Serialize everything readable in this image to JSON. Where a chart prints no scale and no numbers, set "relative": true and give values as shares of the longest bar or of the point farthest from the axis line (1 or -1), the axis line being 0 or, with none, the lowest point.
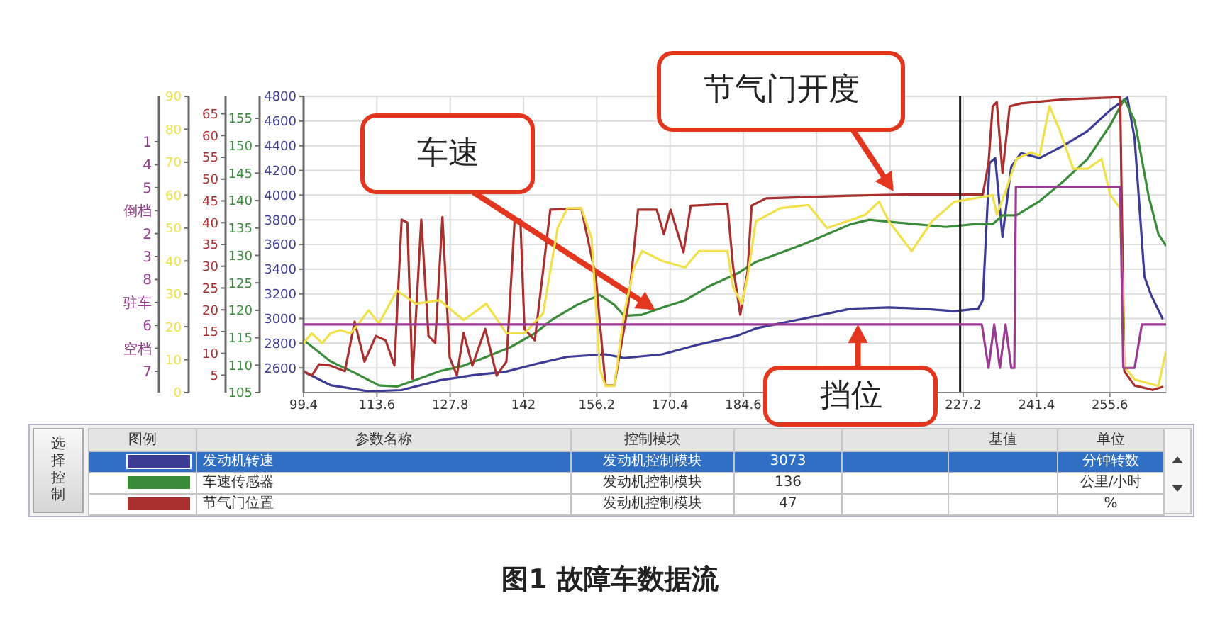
{
  "chart_data": [
    {
      "type": "line",
      "title": "图1 故障车数据流",
      "xlim": [
        99.4,
        266.5
      ],
      "xticks": [
        99.4,
        113.6,
        127.8,
        142,
        156.2,
        170.4,
        184.6,
        {
          "value": 198.8,
          "label": null
        },
        {
          "value": 213,
          "label": null
        },
        227.2,
        241.4,
        255.6
      ],
      "ylim": [
        2400,
        4800
      ],
      "yticks": [
        2600,
        2800,
        3000,
        3200,
        3400,
        3600,
        3800,
        4000,
        4200,
        4400,
        4600,
        4800
      ],
      "y2lim": [
        105,
        159
      ],
      "y2ticks": [
        105,
        110,
        115,
        120,
        125,
        130,
        135,
        140,
        145,
        150,
        155
      ],
      "y3lim": [
        1,
        69
      ],
      "y3ticks": [
        5,
        10,
        15,
        20,
        25,
        30,
        35,
        40,
        45,
        50,
        55,
        60,
        65
      ],
      "grid": true,
      "legend": "bottom",
      "ref_lines": [
        {
          "axis": "x",
          "value": 226.6,
          "color": "#1a1a1a"
        }
      ],
      "annotations": [
        {
          "text": "车速",
          "x": 167.5,
          "y": 3070
        },
        {
          "text": "节气门开度",
          "x": 213.7,
          "y": 4030
        },
        "选择控制",
        "图例",
        "参数名称",
        "控制模块",
        "基值",
        "单位",
        "发动机控制模块",
        "3073",
        "分钟转数",
        "发动机控制模块",
        "136",
        "公里/小时",
        "发动机控制模块",
        "47",
        "%"
      ],
      "series": [
        {
          "name": "发动机转速",
          "color": "#3c3c94",
          "x": [
            99.4,
            104.6,
            112.0,
            118.4,
            125.8,
            132.1,
            138.7,
            144.2,
            150.5,
            157.9,
            161.5,
            168.9,
            176.0,
            183.4,
            187.0,
            196.4,
            205.4,
            212.8,
            219.2,
            225.5,
            230.1,
            231.0,
            232.3,
            233.4,
            234.8,
            236.5,
            238.4,
            242.0,
            246.6,
            251.3,
            255.7,
            259.0,
            260.4,
            262.3,
            263.6,
            265.8
          ],
          "values": [
            2570,
            2460,
            2410,
            2420,
            2500,
            2540,
            2570,
            2630,
            2690,
            2710,
            2680,
            2710,
            2790,
            2860,
            2920,
            3000,
            3080,
            3090,
            3080,
            3060,
            3080,
            3150,
            4260,
            4300,
            3660,
            4230,
            4340,
            4300,
            4400,
            4520,
            4690,
            4790,
            4460,
            3340,
            3190,
            3000
          ]
        },
        {
          "name": "车速传感器",
          "color": "#3a8c3a",
          "axis": "y2",
          "x": [
            99.4,
            104.6,
            109.3,
            114.0,
            117.5,
            121.1,
            125.8,
            130.4,
            134.8,
            139.5,
            144.2,
            147.7,
            152.4,
            156.8,
            159.6,
            161.5,
            165.0,
            168.9,
            173.3,
            178.0,
            183.4,
            187.0,
            196.4,
            205.4,
            209.0,
            214.5,
            223.8,
            229.3,
            232.9,
            234.8,
            237.5,
            242.0,
            246.6,
            251.3,
            255.7,
            258.4,
            260.4,
            263.1,
            265.0,
            266.4
          ],
          "values": [
            114.6,
            110.7,
            108.6,
            106.3,
            106.1,
            107.3,
            108.9,
            109.9,
            111.5,
            113.3,
            115.8,
            118.4,
            121.0,
            122.8,
            121.0,
            119.0,
            119.2,
            120.5,
            121.8,
            124.4,
            126.7,
            128.8,
            132.1,
            135.7,
            136.5,
            136.0,
            135.2,
            135.7,
            135.7,
            137.3,
            137.3,
            139.9,
            143.5,
            147.6,
            153.8,
            158.5,
            154.6,
            140.9,
            133.9,
            131.9
          ]
        },
        {
          "name": "节气门位置",
          "color": "#a8302e",
          "axis": "y3",
          "x": [
            99.4,
            101.0,
            102.4,
            104.6,
            107.4,
            109.3,
            111.2,
            113.4,
            115.3,
            117.0,
            118.4,
            119.5,
            120.5,
            122.2,
            123.6,
            124.9,
            126.3,
            127.7,
            129.1,
            130.4,
            132.1,
            134.6,
            136.8,
            138.7,
            140.3,
            141.4,
            142.2,
            144.2,
            147.2,
            153.2,
            156.0,
            157.9,
            159.6,
            162.3,
            164.2,
            167.8,
            169.2,
            170.5,
            173.0,
            174.4,
            181.5,
            182.6,
            184.0,
            185.4,
            186.2,
            189.0,
            205.4,
            216.4,
            231.0,
            232.1,
            232.9,
            233.7,
            234.8,
            236.2,
            238.4,
            246.6,
            257.6,
            258.4,
            260.4,
            263.9,
            265.8
          ],
          "values": [
            5.9,
            4.9,
            7.5,
            7.2,
            5.9,
            17.3,
            8.1,
            14.0,
            13.0,
            7.2,
            40.7,
            40.0,
            4.2,
            40.7,
            14.0,
            12.4,
            41.3,
            9.1,
            4.9,
            14.7,
            7.2,
            15.6,
            4.9,
            8.1,
            40.7,
            40.7,
            15.6,
            13.0,
            43.0,
            43.3,
            27.7,
            2.6,
            2.6,
            21.2,
            43.0,
            43.0,
            37.4,
            43.0,
            33.2,
            43.9,
            44.3,
            30.0,
            18.9,
            28.6,
            43.9,
            45.6,
            46.2,
            46.5,
            46.5,
            53.7,
            66.7,
            67.7,
            51.4,
            66.7,
            67.4,
            68.3,
            68.8,
            5.9,
            2.6,
            1.6,
            2.3
          ]
        }
      ]
    },
    {
      "type": "line",
      "xlim": [
        99.4,
        266.5
      ],
      "ylim": [
        0,
        90
      ],
      "yticks": [
        0,
        10,
        20,
        30,
        40,
        50,
        60,
        70,
        80,
        90
      ],
      "tick_labels": "y",
      "series": [
        {
          "color": "#f0e04a",
          "x": [
            99.4,
            101.0,
            103.0,
            104.6,
            106.5,
            108.5,
            110.1,
            112.0,
            114.0,
            117.5,
            121.1,
            125.8,
            130.4,
            134.8,
            138.7,
            142.2,
            145.8,
            148.6,
            150.5,
            153.2,
            155.2,
            156.8,
            157.9,
            159.6,
            161.5,
            163.4,
            165.0,
            168.9,
            173.3,
            176.0,
            181.5,
            182.6,
            184.3,
            185.4,
            187.0,
            191.7,
            197.2,
            200.8,
            204.6,
            208.2,
            210.9,
            212.8,
            217.2,
            221.1,
            225.5,
            229.3,
            232.9,
            233.7,
            235.6,
            237.5,
            240.3,
            242.0,
            243.9,
            245.8,
            248.5,
            251.3,
            254.0,
            255.7,
            257.6,
            258.4,
            260.4,
            265.0,
            266.4
          ],
          "values": [
            15,
            18,
            15,
            18,
            19,
            18,
            21,
            25,
            21,
            31,
            27,
            28,
            22,
            27,
            18,
            18,
            24,
            50,
            56,
            56,
            47,
            7,
            2,
            2,
            24,
            38,
            43,
            40,
            38,
            43,
            43,
            32,
            27,
            35,
            52,
            56,
            57,
            50,
            52,
            54,
            58,
            52,
            43,
            52,
            58,
            59,
            60,
            54,
            62,
            71,
            73,
            72,
            87,
            80,
            68,
            68,
            71,
            60,
            56,
            8,
            4,
            2,
            12
          ]
        }
      ]
    },
    {
      "type": "line",
      "xlim": [
        99.4,
        266.5
      ],
      "relative": true,
      "tick_labels": false,
      "annotations": [
        {
          "text": "挡位",
          "x": 206.8,
          "y": 0.24
        },
        "1",
        "4",
        "5",
        "倒档",
        "2",
        "3",
        "8",
        "驻车",
        "6",
        "空档",
        "7"
      ],
      "series": [
        {
          "color": "#9a3a92",
          "x": [
            99.4,
            230.8,
            232.1,
            233.2,
            234.3,
            235.4,
            236.5,
            237.1,
            237.4,
            257.6,
            258.2,
            260.4,
            261.8,
            266.4
          ],
          "values": [
            0.24,
            0.24,
            0,
            0.24,
            0,
            0.24,
            0,
            0,
            1,
            1,
            0,
            0,
            0.24,
            0.24
          ]
        }
      ]
    }
  ]
}
